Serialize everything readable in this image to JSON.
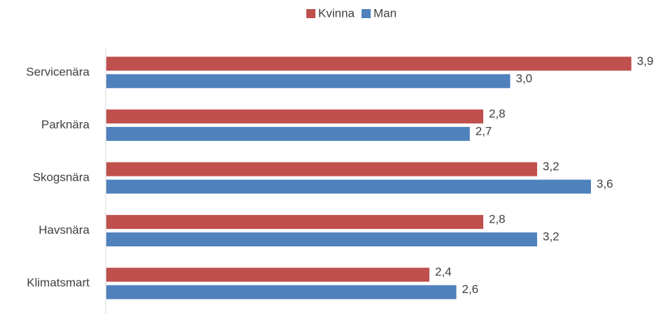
{
  "chart_data": {
    "type": "bar",
    "orientation": "horizontal",
    "categories": [
      "Servicenära",
      "Parknära",
      "Skogsnära",
      "Havsnära",
      "Klimatsmart"
    ],
    "series": [
      {
        "name": "Kvinna",
        "color": "#c0504d",
        "values": [
          3.9,
          2.8,
          3.2,
          2.8,
          2.4
        ],
        "value_labels": [
          "3,9",
          "2,8",
          "3,2",
          "2,8",
          "2,4"
        ]
      },
      {
        "name": "Man",
        "color": "#4f81bd",
        "values": [
          3.0,
          2.7,
          3.6,
          3.2,
          2.6
        ],
        "value_labels": [
          "3,0",
          "2,7",
          "3,6",
          "3,2",
          "2,6"
        ]
      }
    ],
    "xlim": [
      0,
      4
    ],
    "legend": "top"
  }
}
